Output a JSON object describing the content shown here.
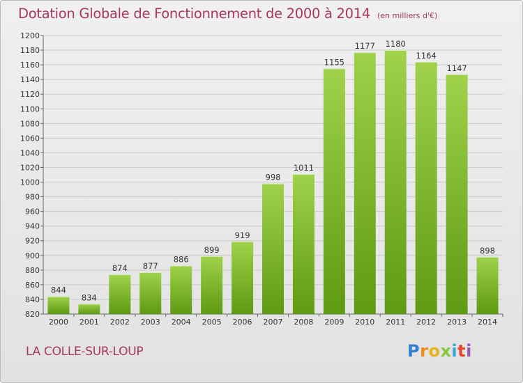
{
  "header": {
    "title": "Dotation Globale de Fonctionnement de 2000 à 2014",
    "unit_note": "(en milliers d'€)"
  },
  "footer": {
    "place_name": "LA COLLE-SUR-LOUP",
    "brand_letters": [
      "P",
      "r",
      "o",
      "x",
      "i",
      "t",
      "i"
    ]
  },
  "colors": {
    "title": "#a8375f",
    "bar_top": "#9fd24a",
    "bar_bottom": "#5e9a12",
    "grid": "#c9c9c9",
    "axis_text": "#333333"
  },
  "chart_data": {
    "type": "bar",
    "title": "Dotation Globale de Fonctionnement de 2000 à 2014",
    "subtitle": "(en milliers d'€)",
    "xlabel": "",
    "ylabel": "",
    "categories": [
      "2000",
      "2001",
      "2002",
      "2003",
      "2004",
      "2005",
      "2006",
      "2007",
      "2008",
      "2009",
      "2010",
      "2011",
      "2012",
      "2013",
      "2014"
    ],
    "values": [
      844,
      834,
      874,
      877,
      886,
      899,
      919,
      998,
      1011,
      1155,
      1177,
      1180,
      1164,
      1147,
      898
    ],
    "ylim": [
      820,
      1200
    ],
    "yticks": [
      820,
      840,
      860,
      880,
      900,
      920,
      940,
      960,
      980,
      1000,
      1020,
      1040,
      1060,
      1080,
      1100,
      1120,
      1140,
      1160,
      1180,
      1200
    ],
    "grid": true,
    "data_labels": true
  }
}
